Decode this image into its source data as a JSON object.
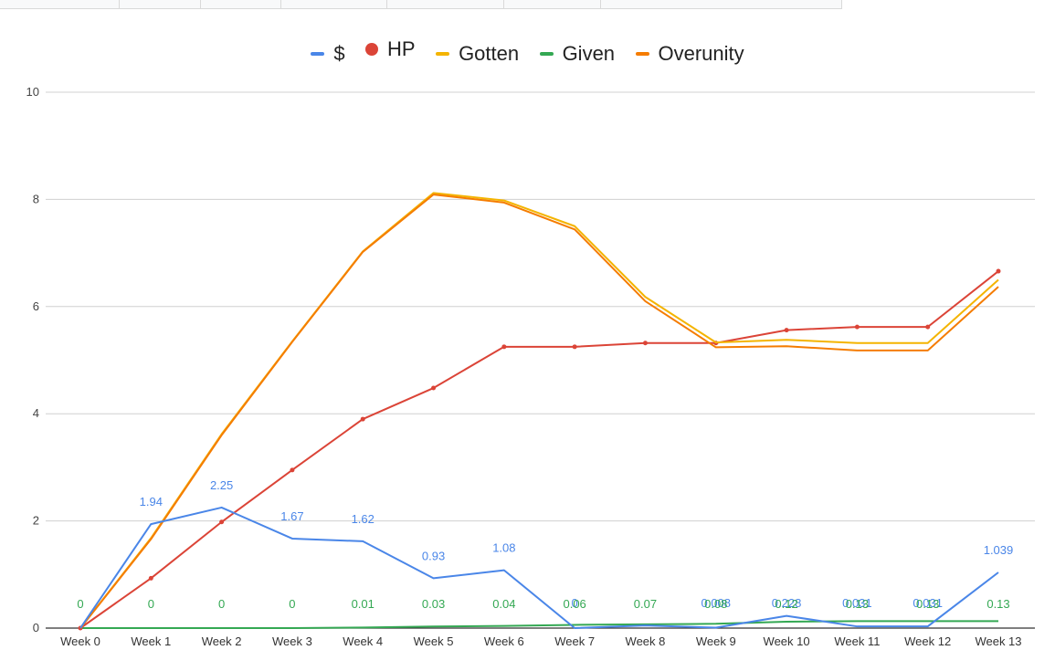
{
  "chart_data": {
    "type": "line",
    "categories": [
      "Week 0",
      "Week 1",
      "Week 2",
      "Week 3",
      "Week 4",
      "Week 5",
      "Week 6",
      "Week 7",
      "Week 8",
      "Week 9",
      "Week 10",
      "Week 11",
      "Week 12",
      "Week 13"
    ],
    "ylim": [
      0,
      10
    ],
    "yticks": [
      "0",
      "2",
      "4",
      "6",
      "8",
      "10"
    ],
    "grid": true,
    "legend_position": "top",
    "series": [
      {
        "name": "$",
        "color": "#4a86e8",
        "marker": "line",
        "values": [
          0,
          1.94,
          2.25,
          1.67,
          1.62,
          0.93,
          1.08,
          0,
          0.05,
          0.008,
          0.228,
          0.031,
          0.031,
          1.039
        ],
        "labels": [
          "",
          "1.94",
          "2.25",
          "1.67",
          "1.62",
          "0.93",
          "1.08",
          "0",
          "",
          "0.008",
          "0.228",
          "0.031",
          "0.031",
          "1.039"
        ]
      },
      {
        "name": "HP",
        "color": "#db4437",
        "marker": "dot",
        "values": [
          0,
          0.93,
          1.98,
          2.95,
          3.9,
          4.48,
          5.25,
          5.25,
          5.32,
          5.32,
          5.56,
          5.62,
          5.62,
          6.66
        ],
        "labels": []
      },
      {
        "name": "Gotten",
        "color": "#f4b400",
        "marker": "line",
        "values": [
          0,
          1.68,
          3.62,
          5.35,
          7.03,
          8.12,
          7.98,
          7.5,
          6.18,
          5.33,
          5.38,
          5.32,
          5.32,
          6.5
        ],
        "labels": []
      },
      {
        "name": "Overunity",
        "color": "#f57c00",
        "marker": "line",
        "values": [
          0,
          1.66,
          3.6,
          5.34,
          7.02,
          8.09,
          7.94,
          7.44,
          6.1,
          5.24,
          5.26,
          5.18,
          5.18,
          6.37
        ],
        "labels": []
      },
      {
        "name": "Given",
        "color": "#34a853",
        "marker": "line",
        "values": [
          0,
          0,
          0,
          0,
          0.01,
          0.03,
          0.04,
          0.06,
          0.07,
          0.08,
          0.12,
          0.13,
          0.13,
          0.13
        ],
        "labels": [
          "0",
          "0",
          "0",
          "0",
          "0.01",
          "0.03",
          "0.04",
          "0.06",
          "0.07",
          "0.08",
          "0.12",
          "0.13",
          "0.13",
          "0.13"
        ]
      }
    ],
    "legend_order": [
      "$",
      "HP",
      "Gotten",
      "Given",
      "Overunity"
    ]
  }
}
